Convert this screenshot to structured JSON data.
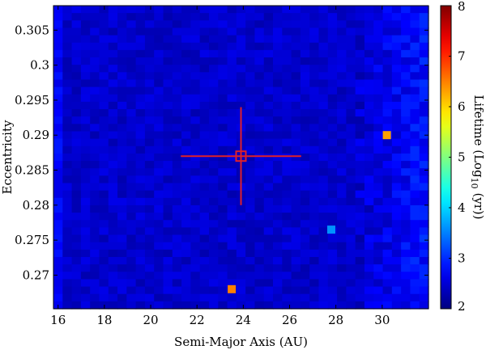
{
  "chart_data": {
    "type": "heatmap",
    "xlabel": "Semi-Major Axis (AU)",
    "ylabel": "Eccentricity",
    "xlim": [
      15.8,
      32.0
    ],
    "ylim": [
      0.2652,
      0.3085
    ],
    "x_ticks": [
      16,
      18,
      20,
      22,
      24,
      26,
      28,
      30
    ],
    "x_tick_labels": [
      "16",
      "18",
      "20",
      "22",
      "24",
      "26",
      "28",
      "30"
    ],
    "y_ticks": [
      0.27,
      0.275,
      0.28,
      0.285,
      0.29,
      0.295,
      0.3,
      0.305
    ],
    "y_tick_labels": [
      "0.27",
      "0.275",
      "0.28",
      "0.285",
      "0.29",
      "0.295",
      "0.3",
      "0.305"
    ],
    "colorbar": {
      "label": "Lifetime (Log10(yr))",
      "label_parts": [
        "Lifetime (Log",
        "10",
        " (yr))"
      ],
      "range": [
        2,
        8
      ],
      "ticks": [
        2,
        3,
        4,
        5,
        6,
        7,
        8
      ],
      "tick_labels": [
        "2",
        "3",
        "4",
        "5",
        "6",
        "7",
        "8"
      ],
      "colormap": "jet"
    },
    "grid_resolution": {
      "nx": 41,
      "ny": 41
    },
    "background_value": 2.45,
    "outer_region_value": 2.85,
    "outer_region_start_a": 28.8,
    "highlighted_cells": [
      {
        "a": 30.2,
        "e": 0.29,
        "value": 6.3
      },
      {
        "a": 23.5,
        "e": 0.268,
        "value": 6.5
      },
      {
        "a": 27.8,
        "e": 0.2765,
        "value": 3.6
      }
    ],
    "nominal_orbit": {
      "a": 23.9,
      "e": 0.287,
      "a_range": [
        21.3,
        26.5
      ],
      "e_range": [
        0.28,
        0.294
      ],
      "color": "#e0202a"
    }
  }
}
